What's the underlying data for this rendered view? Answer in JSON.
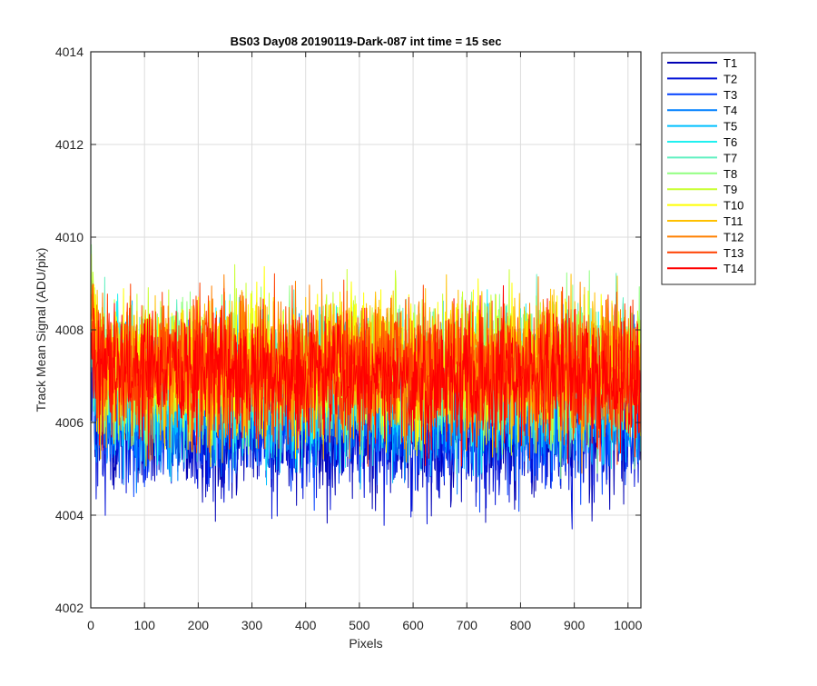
{
  "chart_data": {
    "type": "line",
    "title": "BS03 Day08 20190119-Dark-087 int time = 15 sec",
    "xlabel": "Pixels",
    "ylabel": "Track Mean Signal (ADU/pix)",
    "xlim": [
      0,
      1024
    ],
    "ylim": [
      4002,
      4014
    ],
    "xticks": [
      0,
      100,
      200,
      300,
      400,
      500,
      600,
      700,
      800,
      900,
      1000
    ],
    "yticks": [
      4002,
      4004,
      4006,
      4008,
      4010,
      4012,
      4014
    ],
    "grid": true,
    "legend_position": "outside-top-right",
    "x_count": 1024,
    "series": [
      {
        "name": "T1",
        "color": "#0000b4",
        "mean": 4005.9,
        "spread": 1.5
      },
      {
        "name": "T2",
        "color": "#0010d8",
        "mean": 4006.0,
        "spread": 1.5
      },
      {
        "name": "T3",
        "color": "#0040ff",
        "mean": 4006.2,
        "spread": 1.4
      },
      {
        "name": "T4",
        "color": "#0080ff",
        "mean": 4006.4,
        "spread": 1.4
      },
      {
        "name": "T5",
        "color": "#00c0ff",
        "mean": 4006.6,
        "spread": 1.4
      },
      {
        "name": "T6",
        "color": "#20f0f0",
        "mean": 4006.8,
        "spread": 1.4
      },
      {
        "name": "T7",
        "color": "#60f0c0",
        "mean": 4007.0,
        "spread": 1.4
      },
      {
        "name": "T8",
        "color": "#90ff80",
        "mean": 4007.1,
        "spread": 1.4
      },
      {
        "name": "T9",
        "color": "#c8ff30",
        "mean": 4007.2,
        "spread": 1.4
      },
      {
        "name": "T10",
        "color": "#ffff00",
        "mean": 4007.2,
        "spread": 1.4
      },
      {
        "name": "T11",
        "color": "#ffc000",
        "mean": 4007.2,
        "spread": 1.4
      },
      {
        "name": "T12",
        "color": "#ff8000",
        "mean": 4007.2,
        "spread": 1.4
      },
      {
        "name": "T13",
        "color": "#ff4000",
        "mean": 4007.1,
        "spread": 1.4
      },
      {
        "name": "T14",
        "color": "#ff0000",
        "mean": 4007.0,
        "spread": 1.4
      }
    ]
  }
}
